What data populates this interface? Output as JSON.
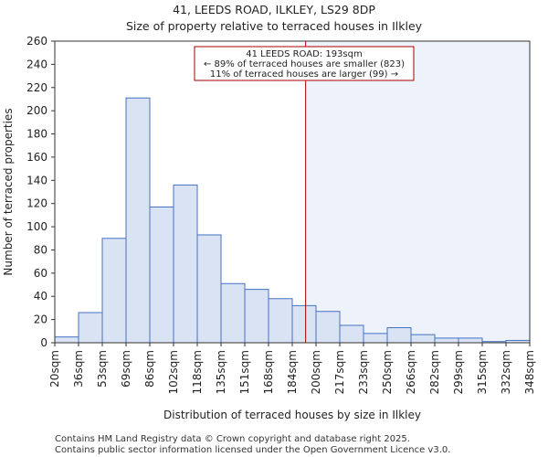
{
  "chart_data": {
    "type": "histogram",
    "title": "41, LEEDS ROAD, ILKLEY, LS29 8DP",
    "subtitle": "Size of property relative to terraced houses in Ilkley",
    "xlabel": "Distribution of terraced houses by size in Ilkley",
    "ylabel": "Number of terraced properties",
    "x_unit": "sqm",
    "bin_edges": [
      20,
      36,
      53,
      69,
      86,
      102,
      118,
      135,
      151,
      168,
      184,
      200,
      217,
      233,
      250,
      266,
      282,
      299,
      315,
      332,
      348
    ],
    "x_tick_labels": [
      "20sqm",
      "36sqm",
      "53sqm",
      "69sqm",
      "86sqm",
      "102sqm",
      "118sqm",
      "135sqm",
      "151sqm",
      "168sqm",
      "184sqm",
      "200sqm",
      "217sqm",
      "233sqm",
      "250sqm",
      "266sqm",
      "282sqm",
      "299sqm",
      "315sqm",
      "332sqm",
      "348sqm"
    ],
    "values": [
      5,
      26,
      90,
      211,
      117,
      136,
      93,
      51,
      46,
      38,
      32,
      27,
      15,
      8,
      13,
      7,
      4,
      4,
      1,
      2
    ],
    "ylim": [
      0,
      260
    ],
    "y_ticks": [
      0,
      20,
      40,
      60,
      80,
      100,
      120,
      140,
      160,
      180,
      200,
      220,
      240,
      260
    ],
    "grid": false,
    "marker": {
      "x": 193,
      "color": "#aa0000",
      "label_lines": [
        "41 LEEDS ROAD: 193sqm",
        "← 89% of terraced houses are smaller (823)",
        "11% of terraced houses are larger (99) →"
      ]
    },
    "colors": {
      "bar_fill": "#dae3f3",
      "bar_stroke": "#4472c4",
      "highlight_region": "#eef2fb"
    }
  },
  "footer": {
    "line1": "Contains HM Land Registry data © Crown copyright and database right 2025.",
    "line2": "Contains public sector information licensed under the Open Government Licence v3.0."
  }
}
